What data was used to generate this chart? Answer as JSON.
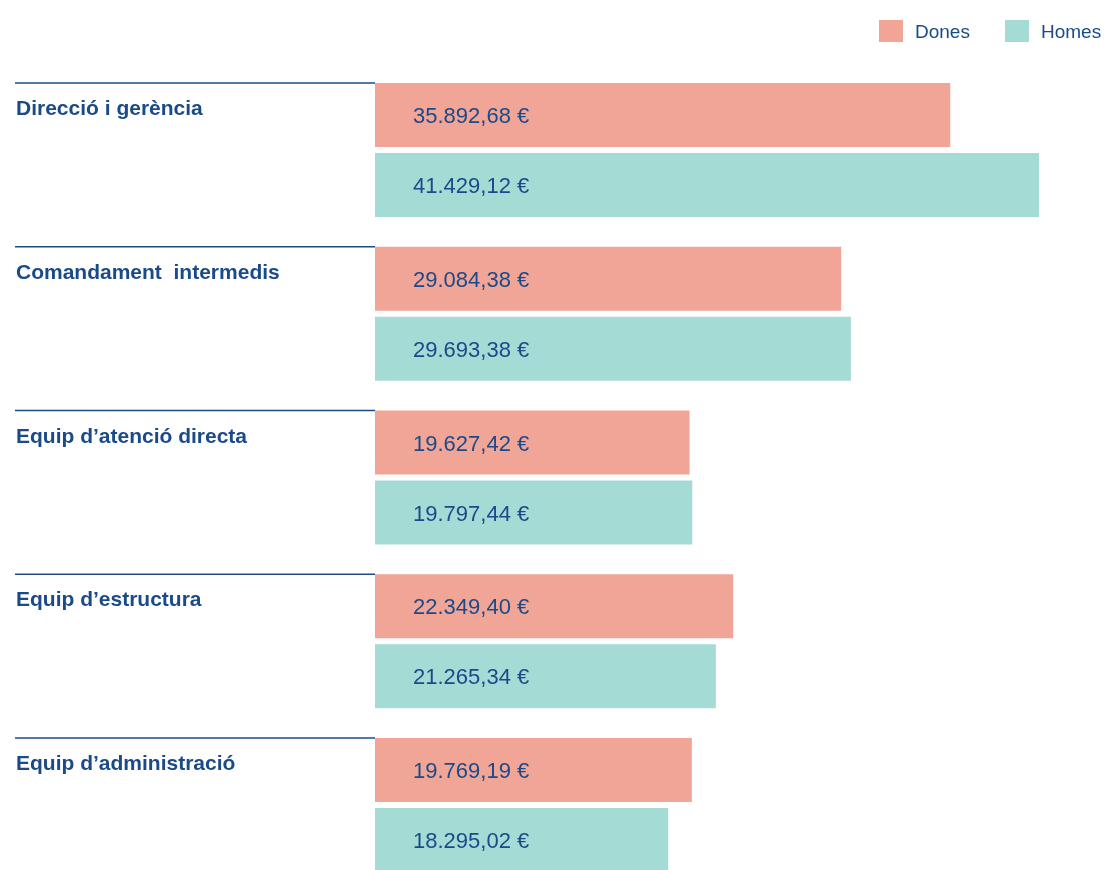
{
  "chart_data": {
    "type": "bar",
    "orientation": "horizontal",
    "categories": [
      "Direcció i gerència",
      "Comandament  intermedis",
      "Equip d’atenció directa",
      "Equip d’estructura",
      "Equip d’administració"
    ],
    "series": [
      {
        "name": "Dones",
        "color": "#f0a596",
        "values": [
          35892.68,
          29084.38,
          19627.42,
          22349.4,
          19769.19
        ],
        "value_labels": [
          "35.892,68 €",
          "29.084,38 €",
          "19.627,42 €",
          "22.349,40 €",
          "19.769,19 €"
        ]
      },
      {
        "name": "Homes",
        "color": "#a5dbd5",
        "values": [
          41429.12,
          29693.38,
          19797.44,
          21265.34,
          18295.02
        ],
        "value_labels": [
          "41.429,12 €",
          "29.693,38 €",
          "19.797,44 €",
          "21.265,34 €",
          "18.295,02 €"
        ]
      }
    ],
    "legend": "top right",
    "grid": false
  }
}
